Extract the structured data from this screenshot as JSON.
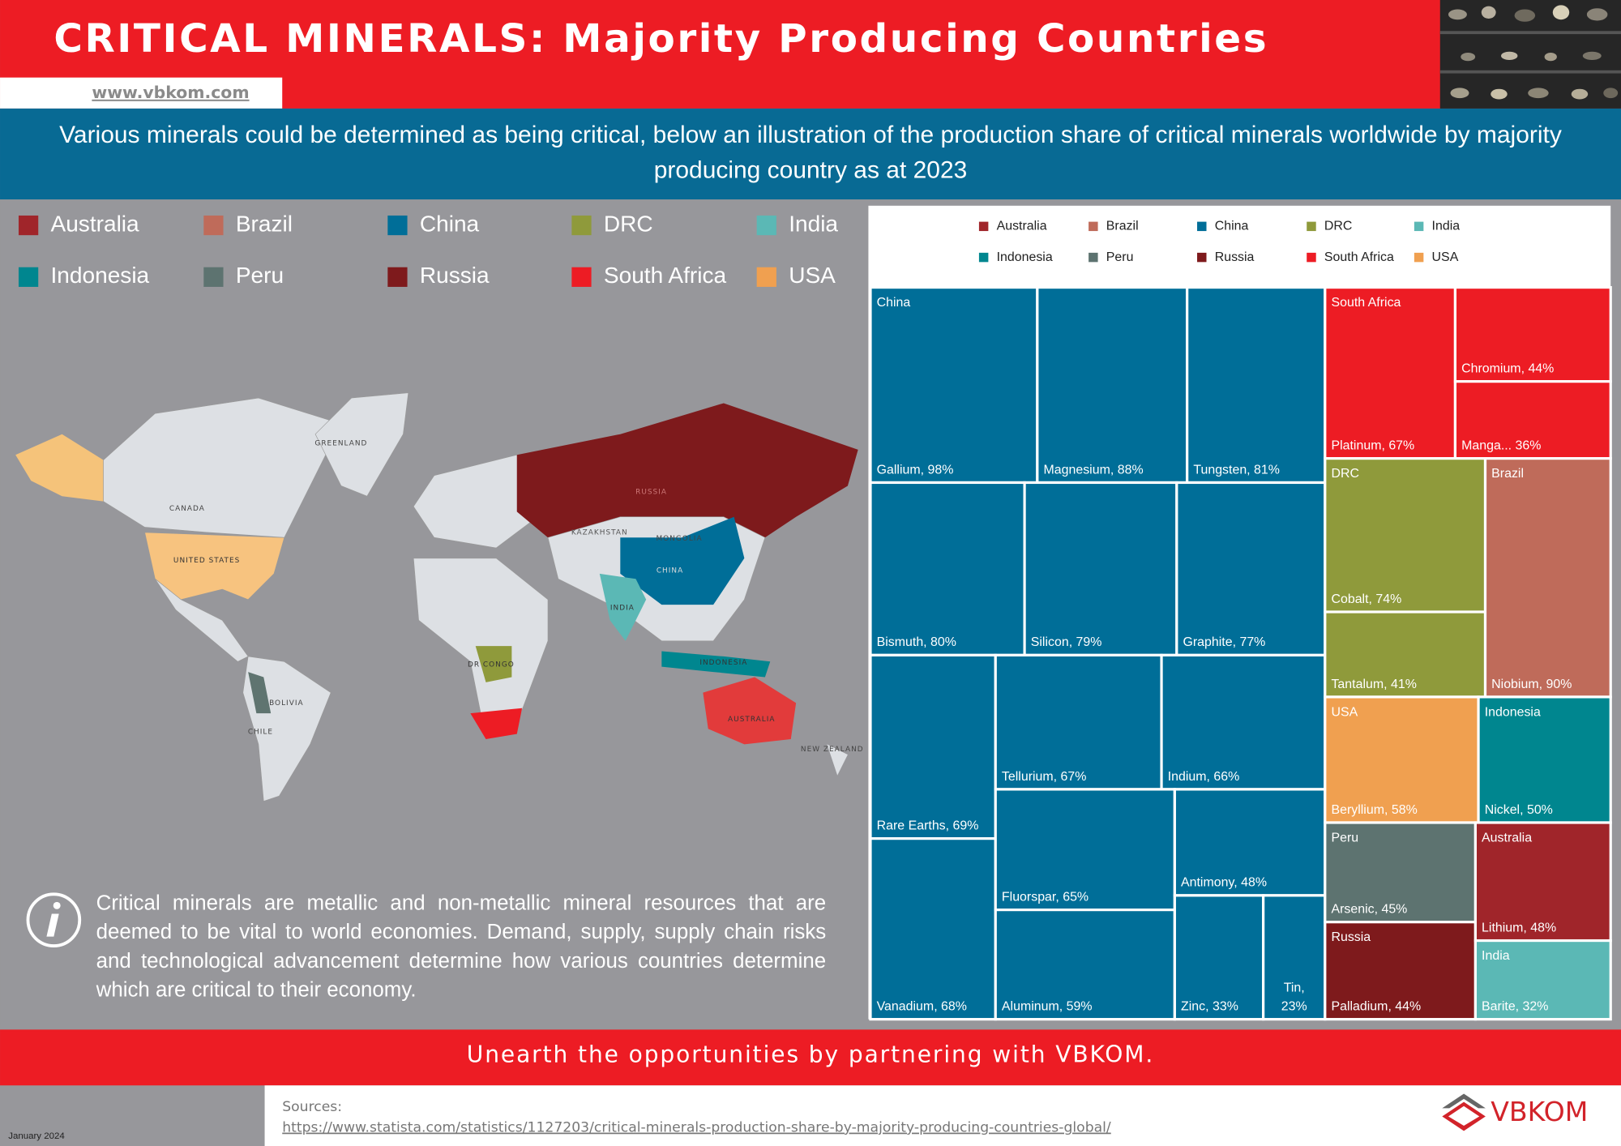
{
  "header": {
    "title": "CRITICAL MINERALS: Majority Producing Countries",
    "website": "www.vbkom.com",
    "intro": "Various minerals could be determined as being critical, below an illustration of the production share of critical minerals worldwide by majority producing country as at 2023"
  },
  "map": {
    "labels": [
      "GREENLAND",
      "CANADA",
      "UNITED STATES",
      "RUSSIA",
      "KAZAKHSTAN",
      "MONGOLIA",
      "CHINA",
      "INDIA",
      "DR CONGO",
      "INDONESIA",
      "AUSTRALIA",
      "BOLIVIA",
      "CHILE",
      "NEW ZEALAND"
    ]
  },
  "info": "Critical minerals are metallic and non-metallic mineral resources that are deemed to be vital to world economies. Demand, supply, supply chain risks and technological advancement determine how various countries determine which are critical to their economy.",
  "chart_data": {
    "type": "treemap",
    "legend": [
      {
        "name": "Australia",
        "color": "#a0252a"
      },
      {
        "name": "Brazil",
        "color": "#bf6b5a"
      },
      {
        "name": "China",
        "color": "#006e98"
      },
      {
        "name": "DRC",
        "color": "#8f9a3b"
      },
      {
        "name": "India",
        "color": "#5bb8b5"
      },
      {
        "name": "Indonesia",
        "color": "#00868f"
      },
      {
        "name": "Peru",
        "color": "#5d7370"
      },
      {
        "name": "Russia",
        "color": "#7e1a1c"
      },
      {
        "name": "South Africa",
        "color": "#ed1c24"
      },
      {
        "name": "USA",
        "color": "#f0a050"
      }
    ],
    "groups": [
      {
        "name": "China",
        "values": [
          98,
          88,
          81,
          80,
          79,
          77,
          69,
          68,
          67,
          66,
          65,
          59,
          48,
          33,
          23
        ],
        "value_labels": [
          "Gallium, 98%",
          "Magnesium, 88%",
          "Tungsten, 81%",
          "Bismuth, 80%",
          "Silicon, 79%",
          "Graphite, 77%",
          "Rare Earths, 69%",
          "Vanadium, 68%",
          "Tellurium, 67%",
          "Indium, 66%",
          "Fluorspar, 65%",
          "Aluminum, 59%",
          "Antimony, 48%",
          "Zinc, 33%",
          "Tin, 23%"
        ]
      },
      {
        "name": "South Africa",
        "values": [
          67,
          44,
          36
        ],
        "value_labels": [
          "Platinum, 67%",
          "Chromium, 44%",
          "Manga... 36%"
        ]
      },
      {
        "name": "DRC",
        "values": [
          74,
          41
        ],
        "value_labels": [
          "Cobalt, 74%",
          "Tantalum, 41%"
        ]
      },
      {
        "name": "Brazil",
        "values": [
          90
        ],
        "value_labels": [
          "Niobium, 90%"
        ]
      },
      {
        "name": "USA",
        "values": [
          58
        ],
        "value_labels": [
          "Beryllium, 58%"
        ]
      },
      {
        "name": "Indonesia",
        "values": [
          50
        ],
        "value_labels": [
          "Nickel, 50%"
        ]
      },
      {
        "name": "Peru",
        "values": [
          45
        ],
        "value_labels": [
          "Arsenic, 45%"
        ]
      },
      {
        "name": "Russia",
        "values": [
          44
        ],
        "value_labels": [
          "Palladium, 44%"
        ]
      },
      {
        "name": "Australia",
        "values": [
          48
        ],
        "value_labels": [
          "Lithium, 48%"
        ]
      },
      {
        "name": "India",
        "values": [
          32
        ],
        "value_labels": [
          "Barite, 32%"
        ]
      }
    ]
  },
  "footer": {
    "banner": "Unearth the opportunities by partnering with VBKOM.",
    "sources_label": "Sources:",
    "source_url": "https://www.statista.com/statistics/1127203/critical-minerals-production-share-by-majority-producing-countries-global/",
    "date": "January 2024",
    "logo": "VBKOM"
  }
}
